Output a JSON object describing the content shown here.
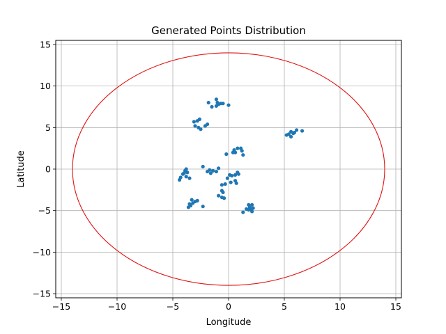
{
  "chart_data": {
    "type": "scatter",
    "title": "Generated Points Distribution",
    "xlabel": "Longitude",
    "ylabel": "Latitude",
    "xlim": [
      -15.5,
      15.5
    ],
    "ylim": [
      -15.5,
      15.5
    ],
    "xticks": [
      -15,
      -10,
      -5,
      0,
      5,
      10,
      15
    ],
    "yticks": [
      -15,
      -10,
      -5,
      0,
      5,
      10,
      15
    ],
    "xtick_labels": [
      "−15",
      "−10",
      "−5",
      "0",
      "5",
      "10",
      "15"
    ],
    "ytick_labels": [
      "−15",
      "−10",
      "−5",
      "0",
      "5",
      "10",
      "15"
    ],
    "grid": true,
    "circle": {
      "center": [
        0,
        0
      ],
      "radius": 14,
      "color": "#e01010"
    },
    "point_color": "#1f77b4",
    "points": [
      [
        -1.8,
        8.0
      ],
      [
        -1.1,
        8.4
      ],
      [
        -1.0,
        8.0
      ],
      [
        -0.9,
        7.8
      ],
      [
        -0.7,
        7.9
      ],
      [
        -0.5,
        7.9
      ],
      [
        -1.1,
        7.6
      ],
      [
        -1.5,
        7.5
      ],
      [
        0.0,
        7.7
      ],
      [
        -3.1,
        5.7
      ],
      [
        -2.6,
        6.0
      ],
      [
        -2.8,
        5.8
      ],
      [
        -3.0,
        5.2
      ],
      [
        -2.7,
        5.0
      ],
      [
        -2.5,
        4.8
      ],
      [
        -2.1,
        5.2
      ],
      [
        -1.9,
        5.4
      ],
      [
        5.6,
        4.5
      ],
      [
        5.8,
        4.3
      ],
      [
        6.1,
        4.7
      ],
      [
        6.6,
        4.6
      ],
      [
        5.4,
        4.2
      ],
      [
        5.2,
        4.1
      ],
      [
        5.6,
        3.9
      ],
      [
        5.9,
        4.4
      ],
      [
        0.5,
        2.3
      ],
      [
        0.8,
        2.5
      ],
      [
        1.1,
        2.5
      ],
      [
        1.2,
        2.2
      ],
      [
        0.6,
        2.0
      ],
      [
        0.4,
        2.0
      ],
      [
        -0.2,
        1.8
      ],
      [
        1.3,
        1.7
      ],
      [
        -2.3,
        0.3
      ],
      [
        -1.7,
        -0.1
      ],
      [
        -1.4,
        -0.2
      ],
      [
        -1.1,
        -0.3
      ],
      [
        -1.6,
        -0.5
      ],
      [
        -0.9,
        0.1
      ],
      [
        -1.9,
        -0.3
      ],
      [
        0.1,
        -0.7
      ],
      [
        0.3,
        -0.8
      ],
      [
        0.6,
        -0.7
      ],
      [
        0.8,
        -0.4
      ],
      [
        0.9,
        -0.6
      ],
      [
        -0.1,
        -1.1
      ],
      [
        0.6,
        -1.4
      ],
      [
        0.2,
        -1.6
      ],
      [
        0.7,
        -1.7
      ],
      [
        -0.3,
        -1.8
      ],
      [
        -0.6,
        -1.9
      ],
      [
        -0.6,
        -2.6
      ],
      [
        -0.5,
        -2.8
      ],
      [
        -0.6,
        -3.4
      ],
      [
        -0.9,
        -3.2
      ],
      [
        -0.4,
        -3.5
      ],
      [
        -3.8,
        0.0
      ],
      [
        -3.9,
        -0.2
      ],
      [
        -4.1,
        -0.6
      ],
      [
        -3.7,
        -0.4
      ],
      [
        -3.8,
        -0.9
      ],
      [
        -4.3,
        -1.0
      ],
      [
        -4.4,
        -1.3
      ],
      [
        -3.5,
        -1.1
      ],
      [
        -4.0,
        -0.5
      ],
      [
        -3.3,
        -3.7
      ],
      [
        -3.0,
        -3.9
      ],
      [
        -2.8,
        -3.8
      ],
      [
        -3.2,
        -4.1
      ],
      [
        -3.5,
        -4.2
      ],
      [
        -3.4,
        -4.4
      ],
      [
        -3.6,
        -4.6
      ],
      [
        -2.3,
        -4.5
      ],
      [
        1.8,
        -4.3
      ],
      [
        2.1,
        -4.3
      ],
      [
        1.9,
        -4.6
      ],
      [
        2.0,
        -4.8
      ],
      [
        1.8,
        -4.9
      ],
      [
        2.2,
        -4.7
      ],
      [
        2.1,
        -5.1
      ],
      [
        1.3,
        -5.2
      ],
      [
        1.6,
        -4.8
      ]
    ]
  }
}
